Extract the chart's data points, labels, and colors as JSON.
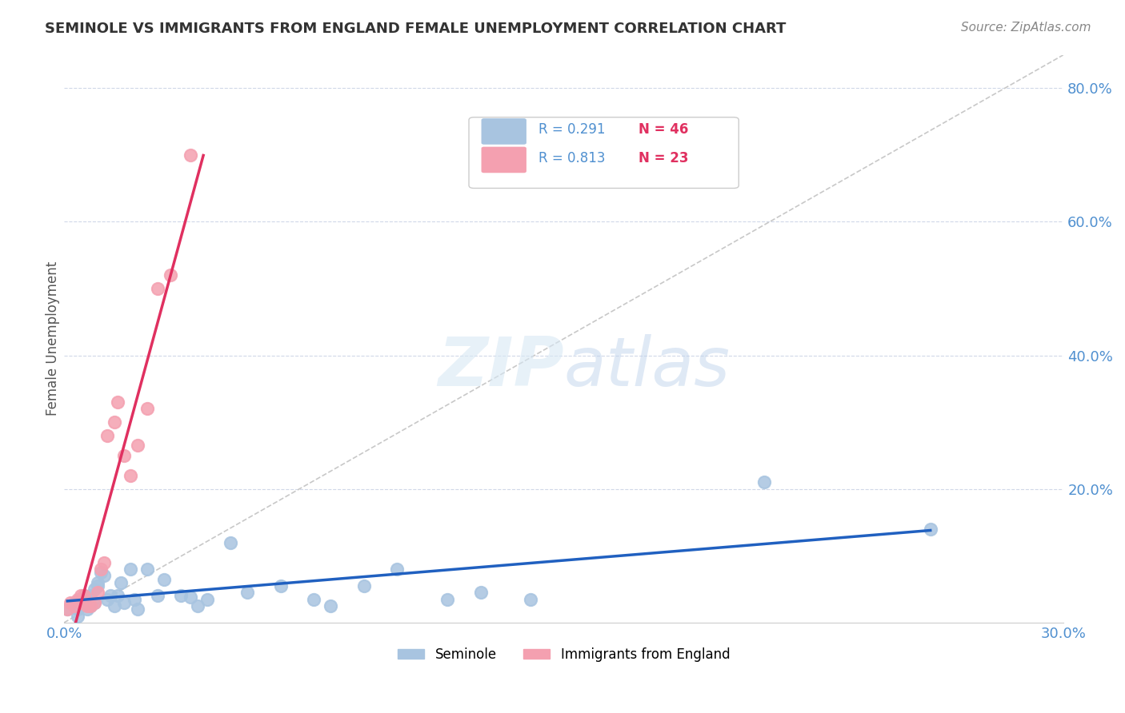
{
  "title": "SEMINOLE VS IMMIGRANTS FROM ENGLAND FEMALE UNEMPLOYMENT CORRELATION CHART",
  "source": "Source: ZipAtlas.com",
  "ylabel": "Female Unemployment",
  "xlabel": "",
  "xlim": [
    0.0,
    0.3
  ],
  "ylim": [
    0.0,
    0.85
  ],
  "legend_r1": "R = 0.291",
  "legend_n1": "N = 46",
  "legend_r2": "R = 0.813",
  "legend_n2": "N = 23",
  "seminole_color": "#a8c4e0",
  "england_color": "#f4a0b0",
  "trend1_color": "#2060c0",
  "trend2_color": "#e03060",
  "diag_color": "#c8c8c8",
  "seminole_x": [
    0.001,
    0.003,
    0.004,
    0.004,
    0.005,
    0.005,
    0.006,
    0.006,
    0.007,
    0.007,
    0.008,
    0.008,
    0.009,
    0.009,
    0.01,
    0.01,
    0.011,
    0.012,
    0.013,
    0.014,
    0.015,
    0.016,
    0.017,
    0.018,
    0.02,
    0.021,
    0.022,
    0.025,
    0.028,
    0.03,
    0.035,
    0.038,
    0.04,
    0.043,
    0.05,
    0.055,
    0.065,
    0.075,
    0.08,
    0.09,
    0.1,
    0.115,
    0.125,
    0.14,
    0.21,
    0.26
  ],
  "seminole_y": [
    0.02,
    0.03,
    0.01,
    0.02,
    0.035,
    0.025,
    0.03,
    0.04,
    0.02,
    0.035,
    0.025,
    0.04,
    0.03,
    0.05,
    0.055,
    0.06,
    0.075,
    0.07,
    0.035,
    0.04,
    0.025,
    0.04,
    0.06,
    0.03,
    0.08,
    0.035,
    0.02,
    0.08,
    0.04,
    0.065,
    0.04,
    0.038,
    0.025,
    0.035,
    0.12,
    0.045,
    0.055,
    0.035,
    0.025,
    0.055,
    0.08,
    0.035,
    0.045,
    0.035,
    0.21,
    0.14
  ],
  "england_x": [
    0.001,
    0.002,
    0.003,
    0.004,
    0.005,
    0.005,
    0.006,
    0.007,
    0.008,
    0.009,
    0.01,
    0.011,
    0.012,
    0.013,
    0.015,
    0.016,
    0.018,
    0.02,
    0.022,
    0.025,
    0.028,
    0.032,
    0.038
  ],
  "england_y": [
    0.02,
    0.03,
    0.025,
    0.035,
    0.04,
    0.03,
    0.04,
    0.025,
    0.025,
    0.03,
    0.045,
    0.08,
    0.09,
    0.28,
    0.3,
    0.33,
    0.25,
    0.22,
    0.265,
    0.32,
    0.5,
    0.52,
    0.7
  ]
}
